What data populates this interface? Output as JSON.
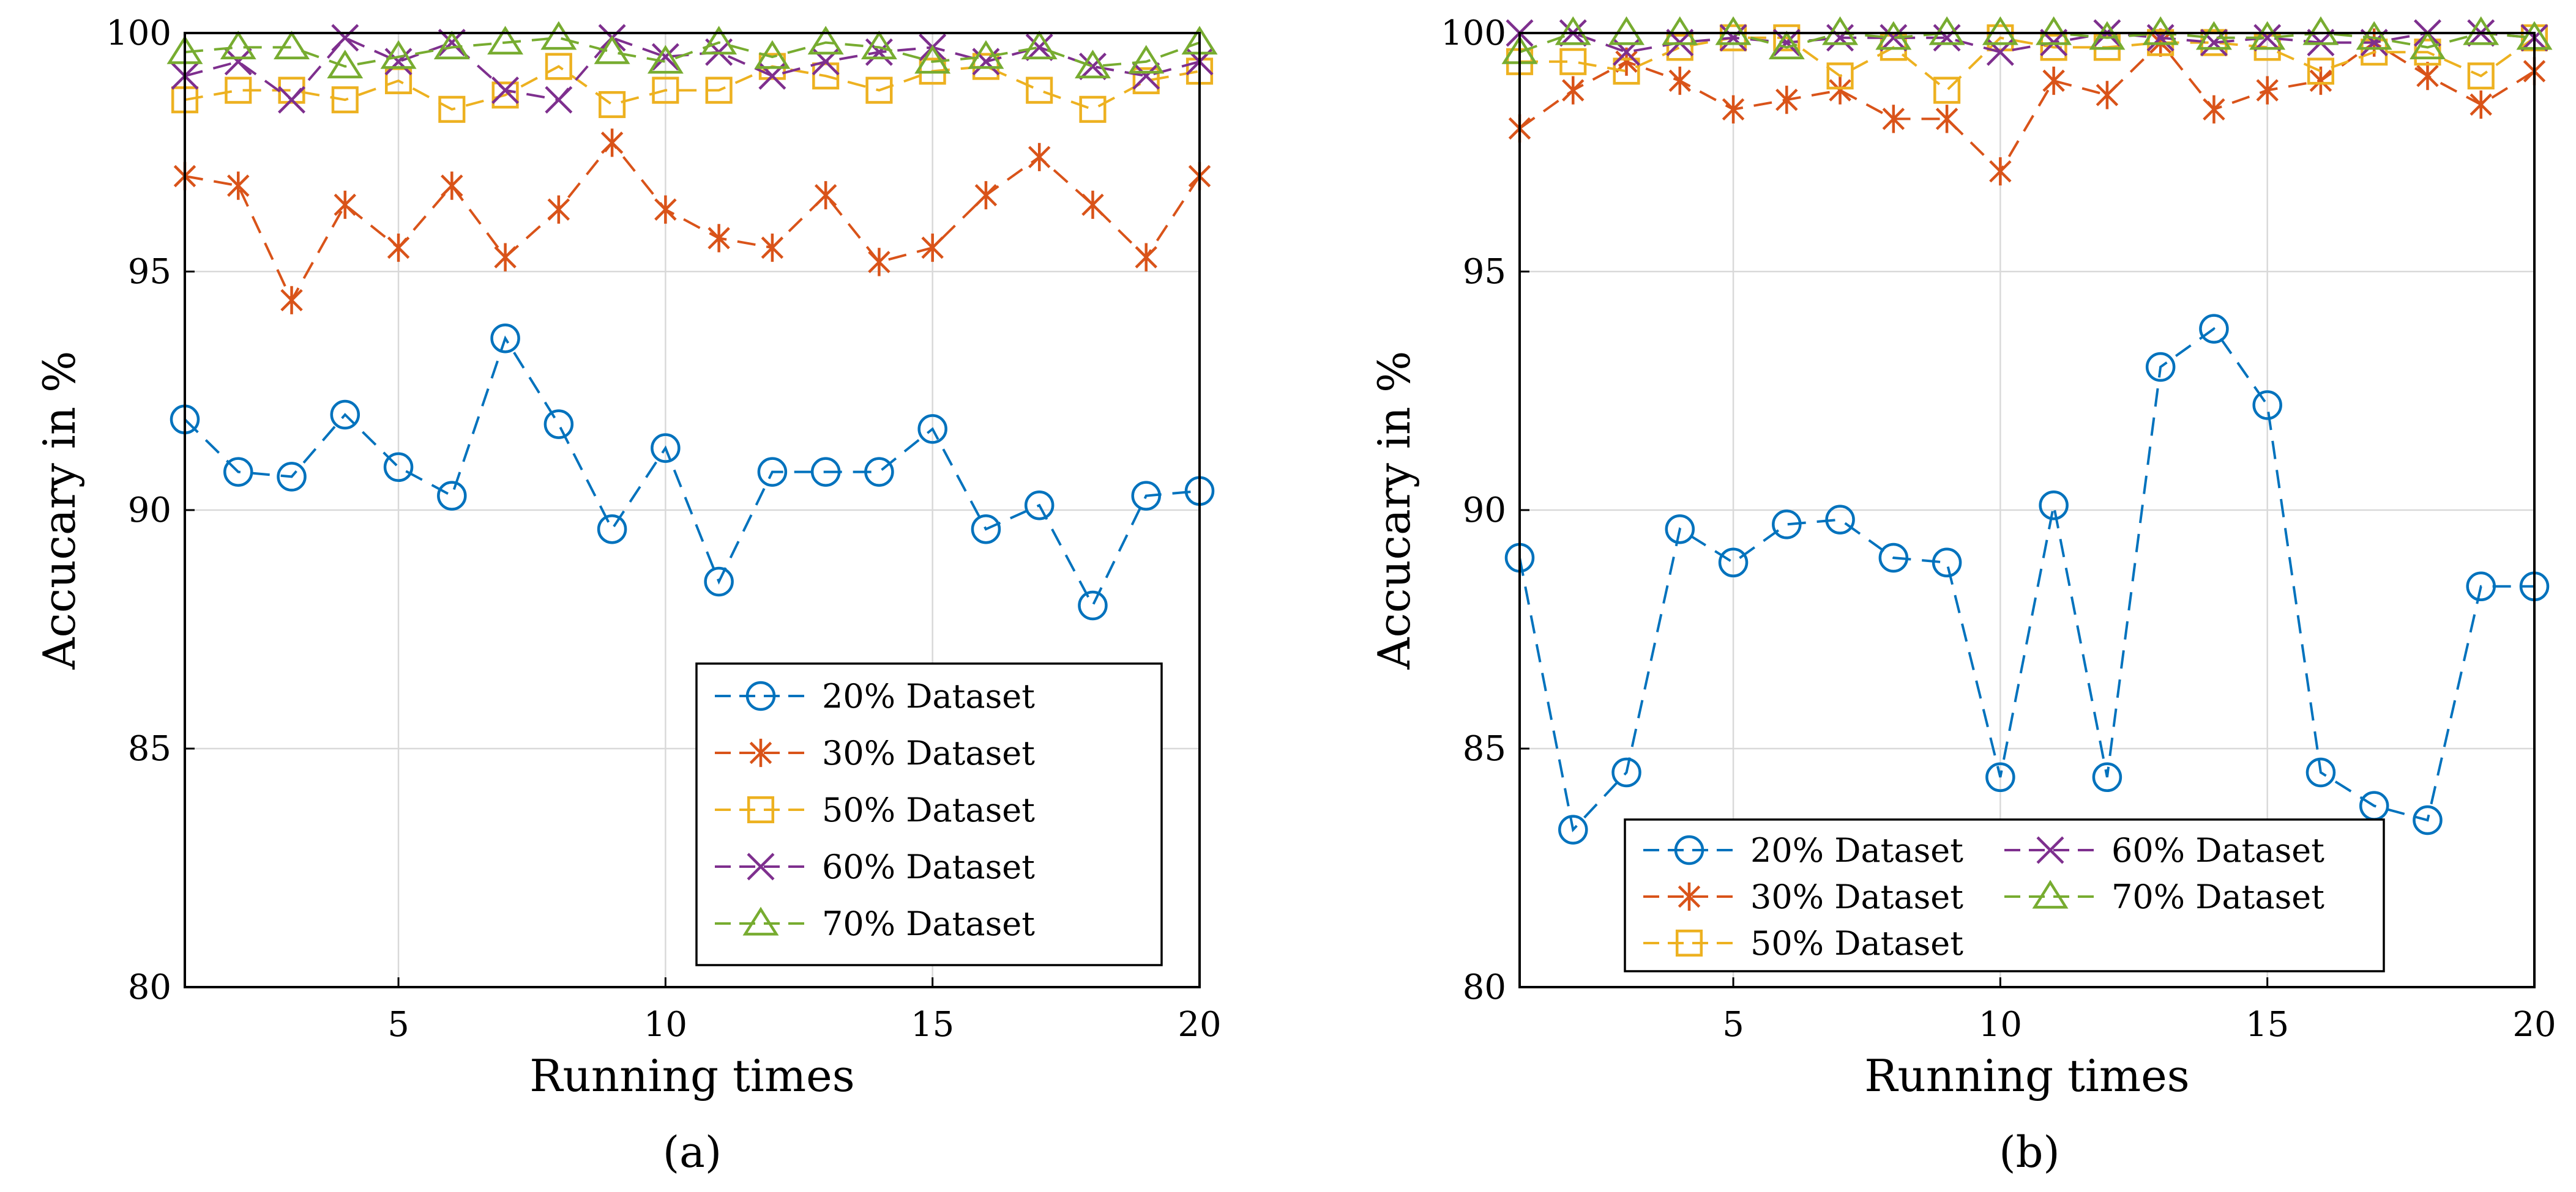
{
  "figure": {
    "panels": [
      "(a)",
      "(b)"
    ]
  },
  "colors": {
    "20% Dataset": "#0072BD",
    "30% Dataset": "#D95319",
    "50% Dataset": "#EDB120",
    "60% Dataset": "#7E2F8E",
    "70% Dataset": "#77AC30",
    "grid": "#d9d9d9",
    "axis": "#000000"
  },
  "chart_data": [
    {
      "type": "line",
      "panel_label": "(a)",
      "xlabel": "Running times",
      "ylabel": "Accucary in %",
      "xlim": [
        1,
        20
      ],
      "ylim": [
        80,
        100
      ],
      "xticks": [
        5,
        10,
        15,
        20
      ],
      "yticks": [
        80,
        85,
        90,
        95,
        100
      ],
      "grid": true,
      "legend": {
        "position": "lower-right",
        "columns": 1
      },
      "x": [
        1,
        2,
        3,
        4,
        5,
        6,
        7,
        8,
        9,
        10,
        11,
        12,
        13,
        14,
        15,
        16,
        17,
        18,
        19,
        20
      ],
      "series": [
        {
          "name": "20% Dataset",
          "marker": "circle",
          "values": [
            91.9,
            90.8,
            90.7,
            92.0,
            90.9,
            90.3,
            93.6,
            91.8,
            89.6,
            91.3,
            88.5,
            90.8,
            90.8,
            90.8,
            91.7,
            89.6,
            90.1,
            88.0,
            90.3,
            90.4
          ]
        },
        {
          "name": "30% Dataset",
          "marker": "asterisk",
          "values": [
            97.0,
            96.8,
            94.4,
            96.4,
            95.5,
            96.8,
            95.3,
            96.3,
            97.7,
            96.3,
            95.7,
            95.5,
            96.6,
            95.2,
            95.5,
            96.6,
            97.4,
            96.4,
            95.3,
            97.0
          ]
        },
        {
          "name": "50% Dataset",
          "marker": "square",
          "values": [
            98.6,
            98.8,
            98.8,
            98.6,
            99.0,
            98.4,
            98.7,
            99.3,
            98.5,
            98.8,
            98.8,
            99.3,
            99.1,
            98.8,
            99.2,
            99.3,
            98.8,
            98.4,
            99.0,
            99.2
          ]
        },
        {
          "name": "60% Dataset",
          "marker": "cross",
          "values": [
            99.1,
            99.4,
            98.6,
            99.9,
            99.4,
            99.8,
            98.8,
            98.6,
            99.9,
            99.5,
            99.6,
            99.1,
            99.4,
            99.6,
            99.7,
            99.4,
            99.7,
            99.3,
            99.1,
            99.4
          ]
        },
        {
          "name": "70% Dataset",
          "marker": "triangle",
          "values": [
            99.6,
            99.7,
            99.7,
            99.3,
            99.5,
            99.7,
            99.8,
            99.9,
            99.6,
            99.4,
            99.8,
            99.5,
            99.8,
            99.7,
            99.4,
            99.5,
            99.7,
            99.3,
            99.4,
            99.8
          ]
        }
      ]
    },
    {
      "type": "line",
      "panel_label": "(b)",
      "xlabel": "Running times",
      "ylabel": "Accucary in %",
      "xlim": [
        1,
        20
      ],
      "ylim": [
        80,
        100
      ],
      "xticks": [
        5,
        10,
        15,
        20
      ],
      "yticks": [
        80,
        85,
        90,
        95,
        100
      ],
      "grid": true,
      "legend": {
        "position": "lower-right",
        "columns": 2
      },
      "x": [
        1,
        2,
        3,
        4,
        5,
        6,
        7,
        8,
        9,
        10,
        11,
        12,
        13,
        14,
        15,
        16,
        17,
        18,
        19,
        20
      ],
      "series": [
        {
          "name": "20% Dataset",
          "marker": "circle",
          "values": [
            89.0,
            83.3,
            84.5,
            89.6,
            88.9,
            89.7,
            89.8,
            89.0,
            88.9,
            84.4,
            90.1,
            84.4,
            93.0,
            93.8,
            92.2,
            84.5,
            83.8,
            83.5,
            88.4,
            88.4
          ]
        },
        {
          "name": "30% Dataset",
          "marker": "asterisk",
          "values": [
            98.0,
            98.8,
            99.4,
            99.0,
            98.4,
            98.6,
            98.8,
            98.2,
            98.2,
            97.1,
            99.0,
            98.7,
            99.8,
            98.4,
            98.8,
            99.0,
            99.8,
            99.1,
            98.5,
            99.2
          ]
        },
        {
          "name": "50% Dataset",
          "marker": "square",
          "values": [
            99.4,
            99.4,
            99.2,
            99.7,
            99.9,
            99.9,
            99.1,
            99.7,
            98.8,
            99.9,
            99.7,
            99.7,
            99.8,
            99.8,
            99.7,
            99.2,
            99.6,
            99.6,
            99.1,
            99.9
          ]
        },
        {
          "name": "60% Dataset",
          "marker": "cross",
          "values": [
            100.0,
            100.0,
            99.6,
            99.8,
            99.9,
            99.8,
            99.9,
            99.9,
            99.9,
            99.6,
            99.8,
            100.0,
            99.9,
            99.8,
            99.9,
            99.8,
            99.8,
            100.0,
            100.0,
            99.9
          ]
        },
        {
          "name": "70% Dataset",
          "marker": "triangle",
          "values": [
            99.6,
            100.0,
            100.0,
            100.0,
            100.0,
            99.7,
            100.0,
            99.9,
            100.0,
            100.0,
            100.0,
            99.9,
            100.0,
            99.9,
            99.9,
            100.0,
            99.9,
            99.7,
            100.0,
            99.9
          ]
        }
      ]
    }
  ]
}
